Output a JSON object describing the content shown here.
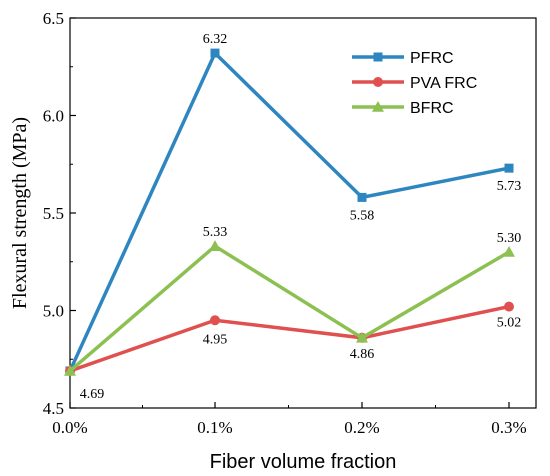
{
  "chart_data": {
    "type": "line",
    "categories": [
      "0.0%",
      "0.1%",
      "0.2%",
      "0.3%"
    ],
    "xlabel": "Fiber volume fraction",
    "ylabel": "Flexural strength (MPa)",
    "ylim": [
      4.5,
      6.5
    ],
    "yticks": [
      "4.5",
      "5.0",
      "5.5",
      "6.0",
      "6.5"
    ],
    "legend_position": "top-right",
    "grid": false,
    "series": [
      {
        "name": "PFRC",
        "color": "#2E86C1",
        "marker": "square",
        "values": [
          4.69,
          6.32,
          5.58,
          5.73
        ],
        "labels": [
          "",
          "6.32",
          "5.58",
          "5.73"
        ]
      },
      {
        "name": "PVA FRC",
        "color": "#E0504F",
        "marker": "circle",
        "values": [
          4.69,
          4.95,
          4.86,
          5.02
        ],
        "labels": [
          "4.69",
          "4.95",
          "",
          "5.02"
        ]
      },
      {
        "name": "BFRC",
        "color": "#8CC152",
        "marker": "triangle",
        "values": [
          4.69,
          5.33,
          4.86,
          5.3
        ],
        "labels": [
          "",
          "5.33",
          "4.86",
          "5.30"
        ]
      }
    ]
  }
}
